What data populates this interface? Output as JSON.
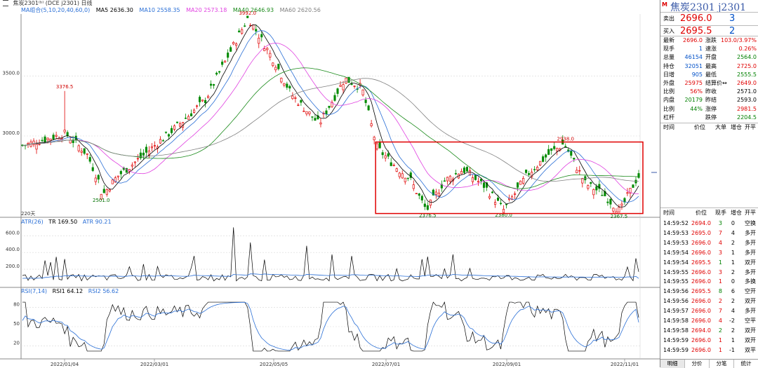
{
  "toolbar": {
    "menu_icon": "menu-icon",
    "text": "焦炭2301⁽ᵇ⁾ (DCE  j2301)   日线"
  },
  "ma_legend": {
    "title": "MA组合(5,10,20,40,60,0)",
    "items": [
      {
        "text": "MA5 2636.30",
        "color": "#000000"
      },
      {
        "text": "MA10 2558.35",
        "color": "#2a6fd6"
      },
      {
        "text": "MA20 2573.18",
        "color": "#e040e0"
      },
      {
        "text": "MA40 2646.93",
        "color": "#1a8a1a"
      },
      {
        "text": "MA60 2620.56",
        "color": "#808080"
      }
    ]
  },
  "main_axis": {
    "ticks": [
      {
        "label": "3500.0",
        "v": 3500
      },
      {
        "label": "3000.0",
        "v": 3000
      }
    ]
  },
  "main_annotations": [
    {
      "text": "3992.0",
      "color": "#d00000"
    },
    {
      "text": "3376.5",
      "color": "#d00000"
    },
    {
      "text": "2501.0",
      "color": "#007000"
    },
    {
      "text": "2938.0",
      "color": "#d00000"
    },
    {
      "text": "2376.5",
      "color": "#007000"
    },
    {
      "text": "2380.0",
      "color": "#007000"
    },
    {
      "text": "2367.5",
      "color": "#007000"
    }
  ],
  "period_label": "220天",
  "atr_legend": {
    "items": [
      {
        "text": "ATR(26)",
        "color": "#2a6fd6"
      },
      {
        "text": "TR 169.50",
        "color": "#000000"
      },
      {
        "text": "ATR 90.21",
        "color": "#2a6fd6"
      }
    ]
  },
  "atr_axis": {
    "ticks": [
      {
        "label": "600.0",
        "v": 600
      },
      {
        "label": "400.0",
        "v": 400
      },
      {
        "label": "200.0",
        "v": 200
      }
    ]
  },
  "rsi_legend": {
    "items": [
      {
        "text": "RSI(7,14)",
        "color": "#2a6fd6"
      },
      {
        "text": "RSI1 64.12",
        "color": "#000000"
      },
      {
        "text": "RSI2 56.62",
        "color": "#2a6fd6"
      }
    ]
  },
  "rsi_axis": {
    "ticks": [
      {
        "label": "80",
        "v": 80
      },
      {
        "label": "50",
        "v": 50
      },
      {
        "label": "20",
        "v": 20
      }
    ]
  },
  "date_axis": {
    "labels": [
      "2022/01/04",
      "2022/03/01",
      "2022/05/05",
      "2022/07/01",
      "2022/09/01",
      "2022/11/01"
    ]
  },
  "chart_data": {
    "type": "candlestick",
    "title": "焦炭2301 (DCE j2301) 日线",
    "y_range": [
      2320,
      4020
    ],
    "bars": 220,
    "key_points": [
      {
        "label": "3992.0",
        "value": 3992.0
      },
      {
        "label": "3376.5",
        "value": 3376.5
      },
      {
        "label": "2501.0",
        "value": 2501.0
      },
      {
        "label": "2938.0",
        "value": 2938.0
      },
      {
        "label": "2376.5",
        "value": 2376.5
      },
      {
        "label": "2380.0",
        "value": 2380.0
      },
      {
        "label": "2367.5",
        "value": 2367.5
      }
    ],
    "atr": {
      "ATR": 90.21,
      "TR": 169.5,
      "range": [
        0,
        720
      ]
    },
    "rsi": {
      "RSI1": 64.12,
      "RSI2": 56.62,
      "range": [
        0,
        100
      ]
    }
  },
  "quote": {
    "badge": "M",
    "title": "焦炭2301   j2301",
    "sell_label": "卖出",
    "sell_price": "2696.0",
    "sell_vol": "3",
    "buy_label": "买入",
    "buy_price": "2695.5",
    "buy_vol": "2",
    "stats": [
      {
        "l": "最新",
        "v": "2696.0",
        "vc": "red",
        "l2": "涨跌",
        "v2": "103.0/3.97%",
        "v2c": "red"
      },
      {
        "l": "现手",
        "v": "1",
        "vc": "blu",
        "l2": "速涨",
        "v2": "0.26%",
        "v2c": "red"
      },
      {
        "l": "总量",
        "v": "46154",
        "vc": "blu",
        "l2": "开盘",
        "v2": "2564.0",
        "v2c": "grn"
      },
      {
        "l": "持仓",
        "v": "32051",
        "vc": "blu",
        "l2": "最高",
        "v2": "2725.0",
        "v2c": "red"
      },
      {
        "l": "日增",
        "v": "905",
        "vc": "blu",
        "l2": "最低",
        "v2": "2555.5",
        "v2c": "grn"
      },
      {
        "l": "外盘",
        "v": "25975",
        "vc": "red",
        "l2": "结算价↔",
        "v2": "2649.0",
        "v2c": "red"
      },
      {
        "l": "比例",
        "v": "56%",
        "vc": "red",
        "l2": "昨收",
        "v2": "2571.0",
        "v2c": "dk"
      },
      {
        "l": "内盘",
        "v": "20179",
        "vc": "grn",
        "l2": "昨结",
        "v2": "2593.0",
        "v2c": "dk"
      },
      {
        "l": "比例",
        "v": "44%",
        "vc": "grn",
        "l2": "涨停",
        "v2": "2981.5",
        "v2c": "red"
      },
      {
        "l": "杠杆",
        "v": "",
        "vc": "dk",
        "l2": "跌停",
        "v2": "2204.5",
        "v2c": "grn"
      }
    ]
  },
  "summary_header": [
    "时间",
    "价位",
    "大单",
    "增仓",
    "开平"
  ],
  "ticks_header": [
    "时间",
    "价位",
    "现手",
    "增仓",
    "开平"
  ],
  "ticks": [
    {
      "t": "14:59:52",
      "p": "2694.0",
      "pc": "red",
      "v": "3",
      "vc": "grn",
      "z": "0",
      "k": "空换"
    },
    {
      "t": "14:59:53",
      "p": "2695.0",
      "pc": "red",
      "v": "7",
      "vc": "red",
      "z": "4",
      "k": "多开"
    },
    {
      "t": "14:59:53",
      "p": "2696.0",
      "pc": "red",
      "v": "4",
      "vc": "red",
      "z": "2",
      "k": "多开"
    },
    {
      "t": "14:59:54",
      "p": "2696.0",
      "pc": "red",
      "v": "3",
      "vc": "red",
      "z": "1",
      "k": "多开"
    },
    {
      "t": "14:59:54",
      "p": "2695.5",
      "pc": "red",
      "v": "1",
      "vc": "grn",
      "z": "1",
      "k": "双开"
    },
    {
      "t": "14:59:55",
      "p": "2696.0",
      "pc": "red",
      "v": "3",
      "vc": "red",
      "z": "2",
      "k": "多开"
    },
    {
      "t": "14:59:55",
      "p": "2696.0",
      "pc": "red",
      "v": "1",
      "vc": "red",
      "z": "0",
      "k": "多换"
    },
    {
      "t": "14:59:56",
      "p": "2695.5",
      "pc": "red",
      "v": "8",
      "vc": "grn",
      "z": "6",
      "k": "空开"
    },
    {
      "t": "14:59:56",
      "p": "2696.0",
      "pc": "red",
      "v": "2",
      "vc": "red",
      "z": "2",
      "k": "双开"
    },
    {
      "t": "14:59:57",
      "p": "2696.0",
      "pc": "red",
      "v": "7",
      "vc": "red",
      "z": "4",
      "k": "多开"
    },
    {
      "t": "14:59:58",
      "p": "2696.0",
      "pc": "red",
      "v": "4",
      "vc": "red",
      "z": "-2",
      "k": "空平"
    },
    {
      "t": "14:59:58",
      "p": "2694.0",
      "pc": "red",
      "v": "2",
      "vc": "grn",
      "z": "2",
      "k": "双开"
    },
    {
      "t": "14:59:59",
      "p": "2696.0",
      "pc": "red",
      "v": "1",
      "vc": "red",
      "z": "1",
      "k": "双开"
    },
    {
      "t": "14:59:59",
      "p": "2696.0",
      "pc": "red",
      "v": "1",
      "vc": "red",
      "z": "-1",
      "k": "双平"
    }
  ],
  "tabs": [
    "明细",
    "分价",
    "分笔",
    "统计"
  ]
}
